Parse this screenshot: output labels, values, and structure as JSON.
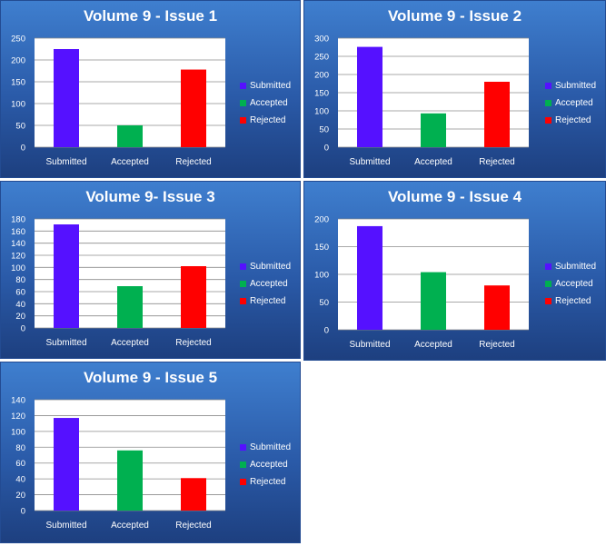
{
  "chart_data": [
    {
      "type": "bar",
      "title": "Volume 9 - Issue 1",
      "categories": [
        "Submitted",
        "Accepted",
        "Rejected"
      ],
      "values": [
        225,
        50,
        178
      ],
      "ylim": [
        0,
        250
      ],
      "yticks": [
        0,
        50,
        100,
        150,
        200,
        250
      ],
      "legend": "right",
      "legend_entries": [
        "Submitted",
        "Accepted",
        "Rejected"
      ],
      "colors": [
        "#5511ff",
        "#00b050",
        "#ff0000"
      ],
      "grid": true
    },
    {
      "type": "bar",
      "title": "Volume 9 - Issue 2",
      "categories": [
        "Submitted",
        "Accepted",
        "Rejected"
      ],
      "values": [
        276,
        93,
        180
      ],
      "ylim": [
        0,
        300
      ],
      "yticks": [
        0,
        50,
        100,
        150,
        200,
        250,
        300
      ],
      "legend": "right",
      "legend_entries": [
        "Submitted",
        "Accepted",
        "Rejected"
      ],
      "colors": [
        "#5511ff",
        "#00b050",
        "#ff0000"
      ],
      "grid": true
    },
    {
      "type": "bar",
      "title": "Volume 9- Issue 3",
      "categories": [
        "Submitted",
        "Accepted",
        "Rejected"
      ],
      "values": [
        171,
        69,
        102
      ],
      "ylim": [
        0,
        180
      ],
      "yticks": [
        0,
        20,
        40,
        60,
        80,
        100,
        120,
        140,
        160,
        180
      ],
      "legend": "right",
      "legend_entries": [
        "Submitted",
        "Accepted",
        "Rejected"
      ],
      "colors": [
        "#5511ff",
        "#00b050",
        "#ff0000"
      ],
      "grid": true
    },
    {
      "type": "bar",
      "title": "Volume 9  - Issue 4",
      "categories": [
        "Submitted",
        "Accepted",
        "Rejected"
      ],
      "values": [
        187,
        104,
        80
      ],
      "ylim": [
        0,
        200
      ],
      "yticks": [
        0,
        50,
        100,
        150,
        200
      ],
      "legend": "right",
      "legend_entries": [
        "Submitted",
        "Accepted",
        "Rejected"
      ],
      "colors": [
        "#5511ff",
        "#00b050",
        "#ff0000"
      ],
      "grid": true
    },
    {
      "type": "bar",
      "title": "Volume 9 - Issue 5",
      "categories": [
        "Submitted",
        "Accepted",
        "Rejected"
      ],
      "values": [
        117,
        76,
        41
      ],
      "ylim": [
        0,
        140
      ],
      "yticks": [
        0,
        20,
        40,
        60,
        80,
        100,
        120,
        140
      ],
      "legend": "right",
      "legend_entries": [
        "Submitted",
        "Accepted",
        "Rejected"
      ],
      "colors": [
        "#5511ff",
        "#00b050",
        "#ff0000"
      ],
      "grid": true
    }
  ]
}
